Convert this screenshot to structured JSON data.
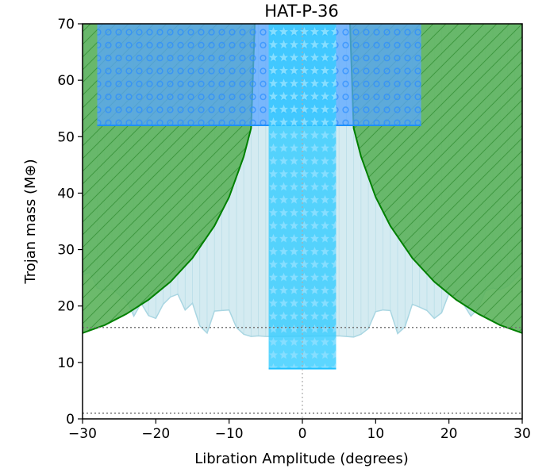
{
  "chart_data": {
    "type": "area",
    "title": "HAT-P-36",
    "xlabel": "Libration Amplitude (degrees)",
    "ylabel": "Trojan mass (M⊕)",
    "xlim": [
      -30,
      30
    ],
    "ylim": [
      0,
      70
    ],
    "xticks": [
      -30,
      -20,
      -10,
      0,
      10,
      20,
      30
    ],
    "yticks": [
      0,
      10,
      20,
      30,
      40,
      50,
      60,
      70
    ],
    "grid": false,
    "colors": {
      "excluded_fill": "#5cb35c",
      "excluded_line": "#008000",
      "sensitivity_fill": "#d4ebf1",
      "sensitivity_line": "#a9d6e2",
      "star_region": "#33ccff",
      "circle_region": "#5aa5ff",
      "circle_edge": "#1e90ff",
      "ref_line": "#777777"
    },
    "series": [
      {
        "kind": "excluded_boundary",
        "x": [
          -30,
          -27,
          -24,
          -21,
          -18,
          -15,
          -12,
          -10,
          -8,
          -7.5,
          -7,
          -6.5,
          6.5,
          7,
          7.5,
          8,
          10,
          12,
          15,
          18,
          21,
          24,
          27,
          30
        ],
        "y": [
          15.2,
          16.6,
          18.6,
          21.1,
          24.3,
          28.5,
          34.2,
          39.3,
          46.5,
          49,
          51.5,
          70,
          70,
          51.5,
          49,
          46.5,
          39.3,
          34.2,
          28.5,
          24.3,
          21.1,
          18.6,
          16.6,
          15.2
        ]
      },
      {
        "kind": "sensitivity_limit",
        "x": [
          -30,
          -29,
          -28,
          -27,
          -26,
          -25,
          -24,
          -23,
          -22,
          -21,
          -20,
          -19,
          -18,
          -17,
          -16,
          -15,
          -14,
          -13,
          -12,
          -11,
          -10,
          -9,
          -8,
          -7,
          -6,
          -5,
          5,
          6,
          7,
          8,
          9,
          10,
          11,
          12,
          13,
          14,
          15,
          16,
          17,
          18,
          19,
          20,
          21,
          22,
          23,
          24,
          25,
          26,
          27,
          28,
          29,
          30
        ],
        "y": [
          25.5,
          26.0,
          23.2,
          22.8,
          23.1,
          22.0,
          21.0,
          18.2,
          20.5,
          18.3,
          17.8,
          20.3,
          21.6,
          22.1,
          19.3,
          20.5,
          16.5,
          15.2,
          19.1,
          19.2,
          19.3,
          16.2,
          15.0,
          14.6,
          14.7,
          14.6,
          14.7,
          14.6,
          14.5,
          15.0,
          16.0,
          19.0,
          19.3,
          19.2,
          15.1,
          16.3,
          20.3,
          19.8,
          19.2,
          17.8,
          18.8,
          22.2,
          21.8,
          20.3,
          18.2,
          19.6,
          22.7,
          23.2,
          22.9,
          23.5,
          24.8,
          26.0
        ]
      },
      {
        "kind": "star_region",
        "x": [
          -4.6,
          4.6
        ],
        "y": [
          8.9,
          70
        ]
      },
      {
        "kind": "circle_region",
        "x": [
          -28,
          16.2
        ],
        "y": [
          52,
          70
        ]
      }
    ],
    "reference_lines": [
      {
        "orientation": "horizontal",
        "y": 16.2
      },
      {
        "orientation": "horizontal",
        "y": 1.0
      },
      {
        "orientation": "vertical",
        "x": 0
      }
    ]
  }
}
